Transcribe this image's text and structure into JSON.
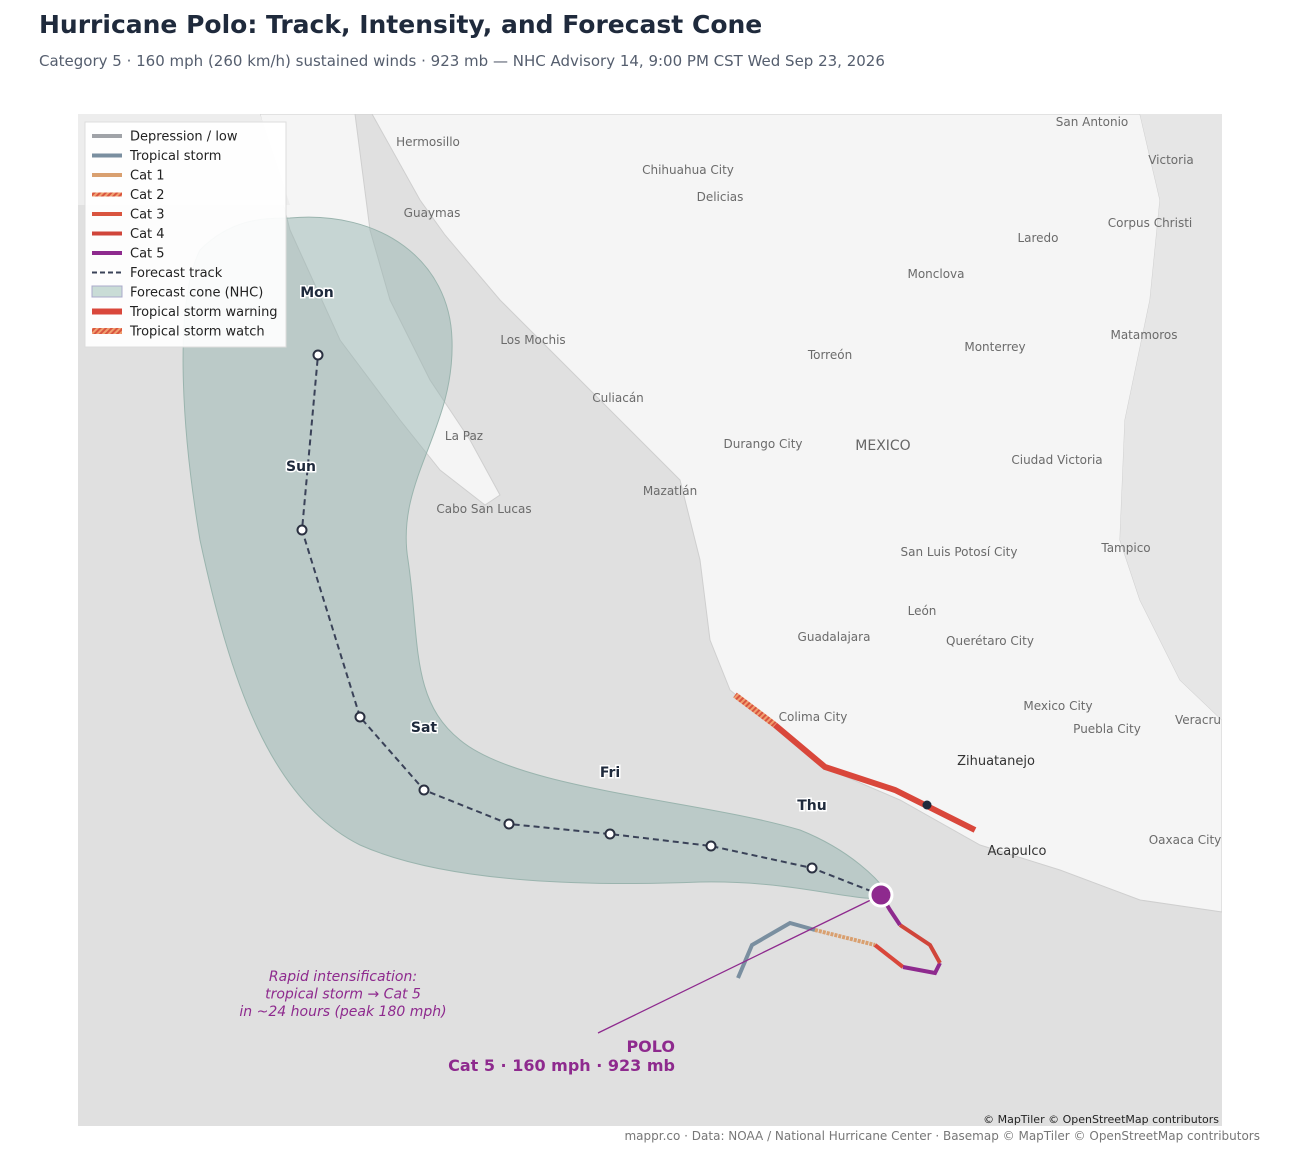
{
  "header": {
    "title": "Hurricane Polo: Track, Intensity, and Forecast Cone",
    "subtitle": "Category 5 · 160 mph (260 km/h) sustained winds · 923 mb — NHC Advisory 14, 9:00 PM CST Wed Sep 23, 2026"
  },
  "legend": {
    "items": [
      "Depression / low",
      "Tropical storm",
      "Cat 1",
      "Cat 2",
      "Cat 3",
      "Cat 4",
      "Cat 5",
      "Forecast track",
      "Forecast cone (NHC)",
      "Tropical storm warning",
      "Tropical storm watch"
    ]
  },
  "places": [
    "San Antonio",
    "Hermosillo",
    "Victoria",
    "Chihuahua City",
    "Delicias",
    "Guaymas",
    "Corpus Christi",
    "Laredo",
    "Monclova",
    "Los Mochis",
    "Matamoros",
    "Monterrey",
    "Torreón",
    "Culiacán",
    "La Paz",
    "Durango City",
    "MEXICO",
    "Ciudad Victoria",
    "Mazatlán",
    "Cabo San Lucas",
    "San Luis Potosí City",
    "Tampico",
    "León",
    "Guadalajara",
    "Querétaro City",
    "Colima City",
    "Mexico City",
    "Puebla City",
    "Veracru",
    "Zihuatanejo",
    "Acapulco",
    "Oaxaca City"
  ],
  "days": [
    "Mon",
    "Sun",
    "Sat",
    "Fri",
    "Thu"
  ],
  "annotation": {
    "lines": [
      "Rapid intensification:",
      "tropical storm → Cat 5",
      "in ~24 hours (peak 180 mph)"
    ]
  },
  "storm_label": {
    "name": "POLO",
    "detail": "Cat 5 · 160 mph · 923 mb"
  },
  "attribution": "© MapTiler © OpenStreetMap contributors",
  "footer": "mappr.co · Data: NOAA / National Hurricane Center · Basemap © MapTiler © OpenStreetMap contributors"
}
